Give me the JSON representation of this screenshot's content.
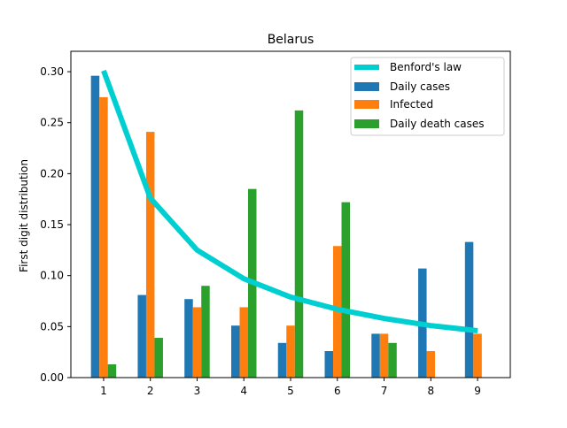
{
  "chart_data": {
    "type": "bar",
    "title": "Belarus",
    "xlabel": "",
    "ylabel": "First digit distribution",
    "categories": [
      "1",
      "2",
      "3",
      "4",
      "5",
      "6",
      "7",
      "8",
      "9"
    ],
    "ylim": [
      0,
      0.32
    ],
    "xlim": [
      0.3,
      9.7
    ],
    "yticks": [
      "0.00",
      "0.05",
      "0.10",
      "0.15",
      "0.20",
      "0.25",
      "0.30"
    ],
    "grid": false,
    "legend_position": "top-right",
    "series": [
      {
        "name": "Daily cases",
        "color": "#1f77b4",
        "values": [
          0.296,
          0.081,
          0.077,
          0.051,
          0.034,
          0.026,
          0.043,
          0.107,
          0.133
        ]
      },
      {
        "name": "Infected",
        "color": "#ff7f0e",
        "values": [
          0.275,
          0.241,
          0.069,
          0.069,
          0.051,
          0.129,
          0.043,
          0.026,
          0.043
        ]
      },
      {
        "name": "Daily death cases",
        "color": "#2ca02c",
        "values": [
          0.013,
          0.039,
          0.09,
          0.185,
          0.262,
          0.172,
          0.034,
          0.0,
          0.0
        ]
      }
    ],
    "line": {
      "name": "Benford's law",
      "color": "#00cfd1",
      "values": [
        0.301,
        0.176,
        0.125,
        0.097,
        0.079,
        0.067,
        0.058,
        0.051,
        0.046
      ]
    }
  }
}
